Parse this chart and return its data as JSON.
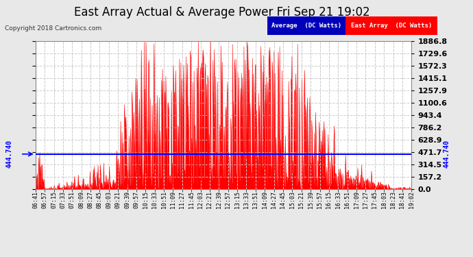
{
  "title": "East Array Actual & Average Power Fri Sep 21 19:02",
  "copyright": "Copyright 2018 Cartronics.com",
  "average_value": 444.74,
  "ymax": 1886.8,
  "ymin": 0.0,
  "yticks": [
    0.0,
    157.2,
    314.5,
    471.7,
    628.9,
    786.2,
    943.4,
    1100.6,
    1257.9,
    1415.1,
    1572.3,
    1729.6,
    1886.8
  ],
  "ytick_labels": [
    "0.0",
    "157.2",
    "314.5",
    "471.7",
    "628.9",
    "786.2",
    "943.4",
    "1100.6",
    "1257.9",
    "1415.1",
    "1572.3",
    "1729.6",
    "1886.8"
  ],
  "average_label": "444.740",
  "time_labels": [
    "06:41",
    "06:57",
    "07:15",
    "07:33",
    "07:51",
    "08:09",
    "08:27",
    "08:45",
    "09:03",
    "09:21",
    "09:39",
    "09:57",
    "10:15",
    "10:33",
    "10:51",
    "11:09",
    "11:27",
    "11:45",
    "12:03",
    "12:21",
    "12:39",
    "12:57",
    "13:15",
    "13:33",
    "13:51",
    "14:09",
    "14:27",
    "14:45",
    "15:03",
    "15:21",
    "15:39",
    "15:57",
    "16:15",
    "16:33",
    "16:51",
    "17:09",
    "17:27",
    "17:45",
    "18:03",
    "18:23",
    "18:41",
    "19:02"
  ],
  "background_color": "#e8e8e8",
  "plot_bg_color": "#ffffff",
  "grid_color": "#cccccc",
  "average_line_color": "#0000ff",
  "east_array_color": "#ff0000",
  "title_fontsize": 12,
  "tick_fontsize": 8,
  "legend_avg_bg": "#0000bb",
  "legend_east_bg": "#ff0000",
  "seed": 1234
}
